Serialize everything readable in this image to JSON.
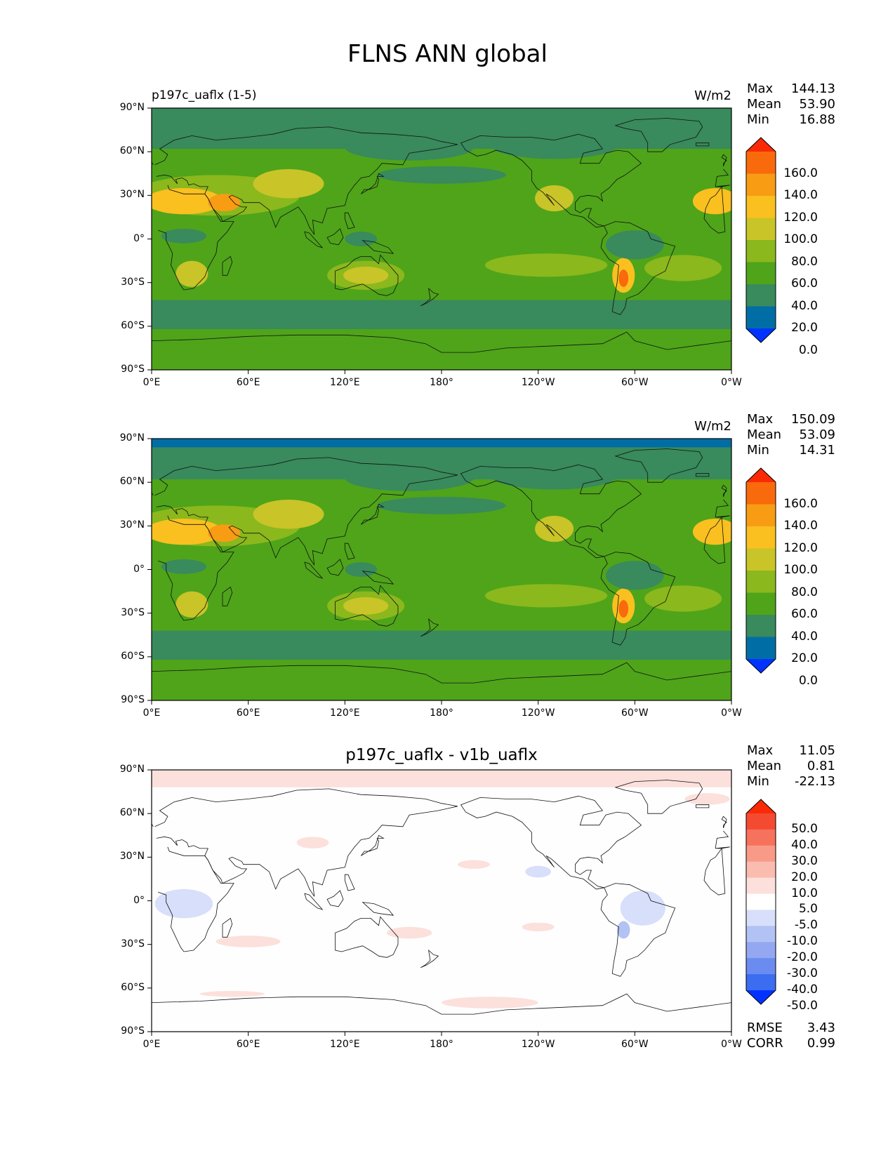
{
  "figure": {
    "title": "FLNS ANN global"
  },
  "axes": {
    "lat_ticks": [
      "90°N",
      "60°N",
      "30°N",
      "0°",
      "30°S",
      "60°S",
      "90°S"
    ],
    "lon_ticks": [
      "0°E",
      "60°E",
      "120°E",
      "180°",
      "120°W",
      "60°W",
      "0°W"
    ]
  },
  "panels": [
    {
      "title_left": "p197c_uaflx (1-5)",
      "title_center": "",
      "units": "W/m2",
      "stats": {
        "max": "144.13",
        "mean": "53.90",
        "min": "16.88"
      },
      "colorbar": {
        "labels": [
          "160.0",
          "140.0",
          "120.0",
          "100.0",
          "80.0",
          "60.0",
          "40.0",
          "20.0",
          "0.0"
        ]
      }
    },
    {
      "title_left": "",
      "title_center": "",
      "units": "W/m2",
      "stats": {
        "max": "150.09",
        "mean": "53.09",
        "min": "14.31"
      },
      "colorbar": {
        "labels": [
          "160.0",
          "140.0",
          "120.0",
          "100.0",
          "80.0",
          "60.0",
          "40.0",
          "20.0",
          "0.0"
        ]
      }
    },
    {
      "title_left": "",
      "title_center": "p197c_uaflx - v1b_uaflx",
      "units": "",
      "stats": {
        "max": "11.05",
        "mean": "0.81",
        "min": "-22.13"
      },
      "colorbar": {
        "labels": [
          "50.0",
          "40.0",
          "30.0",
          "20.0",
          "10.0",
          "5.0",
          "-5.0",
          "-10.0",
          "-20.0",
          "-30.0",
          "-40.0",
          "-50.0"
        ]
      },
      "rmse": "3.43",
      "corr": "0.99"
    }
  ],
  "stat_labels": {
    "max": "Max",
    "mean": "Mean",
    "min": "Min",
    "rmse": "RMSE",
    "corr": "CORR"
  },
  "colors": {
    "levels_abs": [
      "#0033ff",
      "#006ea5",
      "#398a5c",
      "#4fa41a",
      "#8bb81c",
      "#c9c428",
      "#f9c020",
      "#f89c14",
      "#f86a0c",
      "#fa2a06"
    ],
    "levels_diff": [
      "#0033ff",
      "#3c6cf0",
      "#6a8cf0",
      "#93a8f0",
      "#b3c2f5",
      "#d8dffa",
      "#ffffff",
      "#fce0dc",
      "#fbbcb0",
      "#f99a88",
      "#f7725c",
      "#f54a32",
      "#fa2a06"
    ]
  }
}
